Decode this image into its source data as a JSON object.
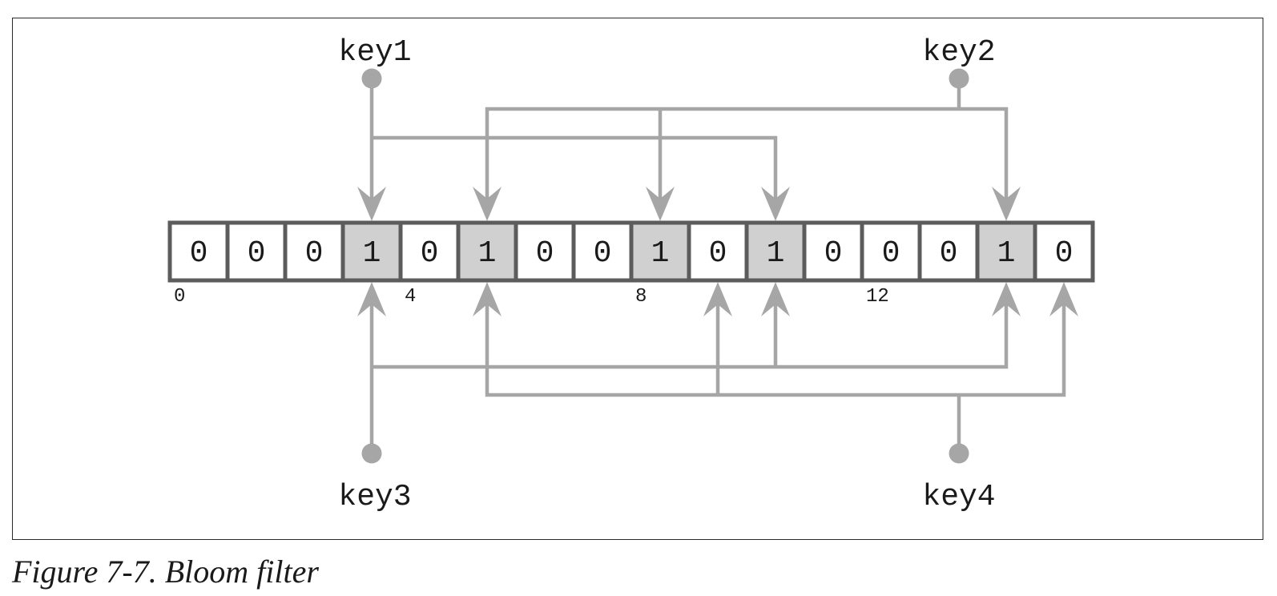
{
  "bits": [
    "0",
    "0",
    "0",
    "1",
    "0",
    "1",
    "0",
    "0",
    "1",
    "0",
    "1",
    "0",
    "0",
    "0",
    "1",
    "0"
  ],
  "index_labels": [
    {
      "index": 0,
      "label": "0"
    },
    {
      "index": 4,
      "label": "4"
    },
    {
      "index": 8,
      "label": "8"
    },
    {
      "index": 12,
      "label": "12"
    }
  ],
  "keys": [
    {
      "name": "key1",
      "side": "top",
      "targets": [
        3,
        10
      ]
    },
    {
      "name": "key2",
      "side": "top",
      "targets": [
        5,
        8,
        14
      ]
    },
    {
      "name": "key3",
      "side": "bottom",
      "targets": [
        3,
        10,
        14
      ]
    },
    {
      "name": "key4",
      "side": "bottom",
      "targets": [
        5,
        9,
        15
      ]
    }
  ],
  "colors": {
    "set_cell_fill": "#d0d0d0",
    "unset_cell_fill": "#ffffff",
    "cell_border": "#5c5c5c",
    "connector": "#a6a6a6"
  },
  "caption": "Figure 7-7. Bloom filter"
}
